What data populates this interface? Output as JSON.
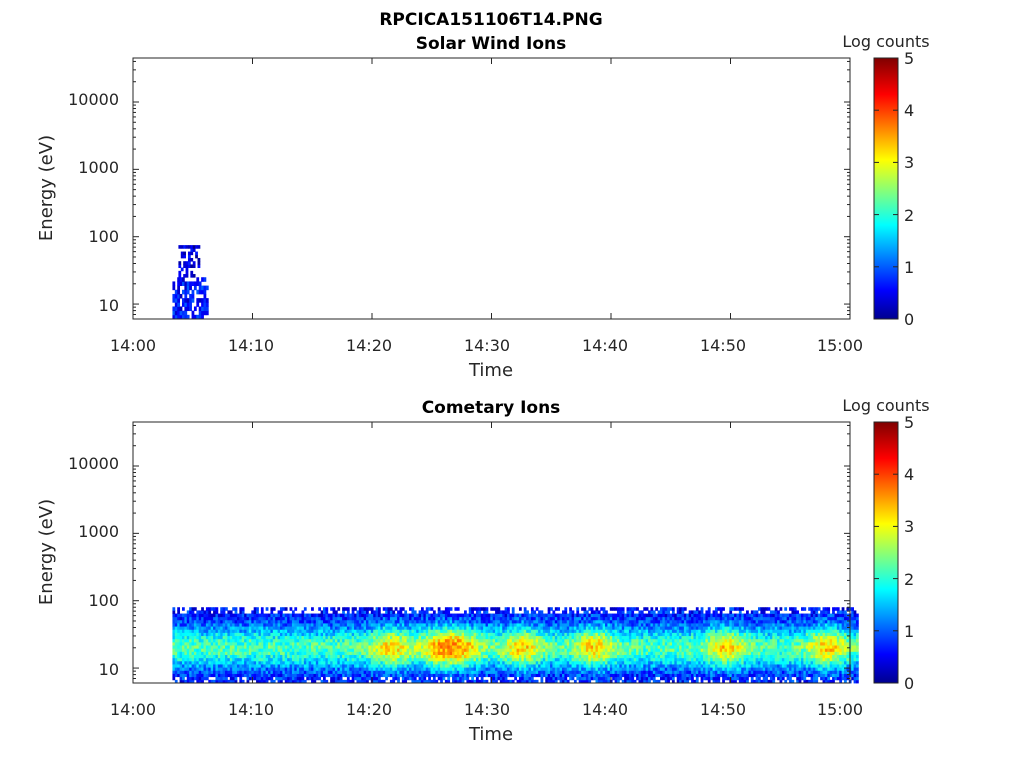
{
  "figure": {
    "title": "RPCICA151106T14.PNG"
  },
  "colors": {
    "axis": "#262626",
    "colormap": [
      "#00008f",
      "#0000ff",
      "#00ffff",
      "#ffff00",
      "#ff0000",
      "#800000"
    ]
  },
  "chart_data": [
    {
      "type": "heatmap",
      "title": "Solar Wind Ions",
      "xlabel": "Time",
      "ylabel": "Energy (eV)",
      "x_ticks": [
        "14:00",
        "14:10",
        "14:20",
        "14:30",
        "14:40",
        "14:50",
        "15:00"
      ],
      "xlim_minutes": [
        0,
        60
      ],
      "y_scale": "log",
      "ylim": [
        6,
        45000
      ],
      "y_ticks": [
        10,
        100,
        1000,
        10000
      ],
      "colorbar": {
        "label": "Log counts",
        "range": [
          0,
          5
        ],
        "ticks": [
          0,
          1,
          2,
          3,
          4,
          5
        ]
      },
      "regions": [
        {
          "start_minute": 3.3,
          "end_minute": 6.2,
          "energy_min": 6,
          "energy_max": 25,
          "level": 0.7
        },
        {
          "start_minute": 3.8,
          "end_minute": 5.5,
          "energy_min": 25,
          "energy_max": 75,
          "level": 0.4
        }
      ]
    },
    {
      "type": "heatmap",
      "title": "Cometary Ions",
      "xlabel": "Time",
      "ylabel": "Energy (eV)",
      "x_ticks": [
        "14:00",
        "14:10",
        "14:20",
        "14:30",
        "14:40",
        "14:50",
        "15:00"
      ],
      "xlim_minutes": [
        0,
        60
      ],
      "y_scale": "log",
      "ylim": [
        6,
        45000
      ],
      "y_ticks": [
        10,
        100,
        1000,
        10000
      ],
      "colorbar": {
        "label": "Log counts",
        "range": [
          0,
          5
        ],
        "ticks": [
          0,
          1,
          2,
          3,
          4,
          5
        ]
      },
      "regions": [
        {
          "start_minute": 3.3,
          "end_minute": 60.7,
          "energy_min": 6,
          "energy_max": 80,
          "level": 1.8
        }
      ],
      "hotspots_minutes": [
        21.5,
        25.5,
        27.5,
        32.5,
        38.5,
        49.5,
        58.0
      ]
    }
  ]
}
